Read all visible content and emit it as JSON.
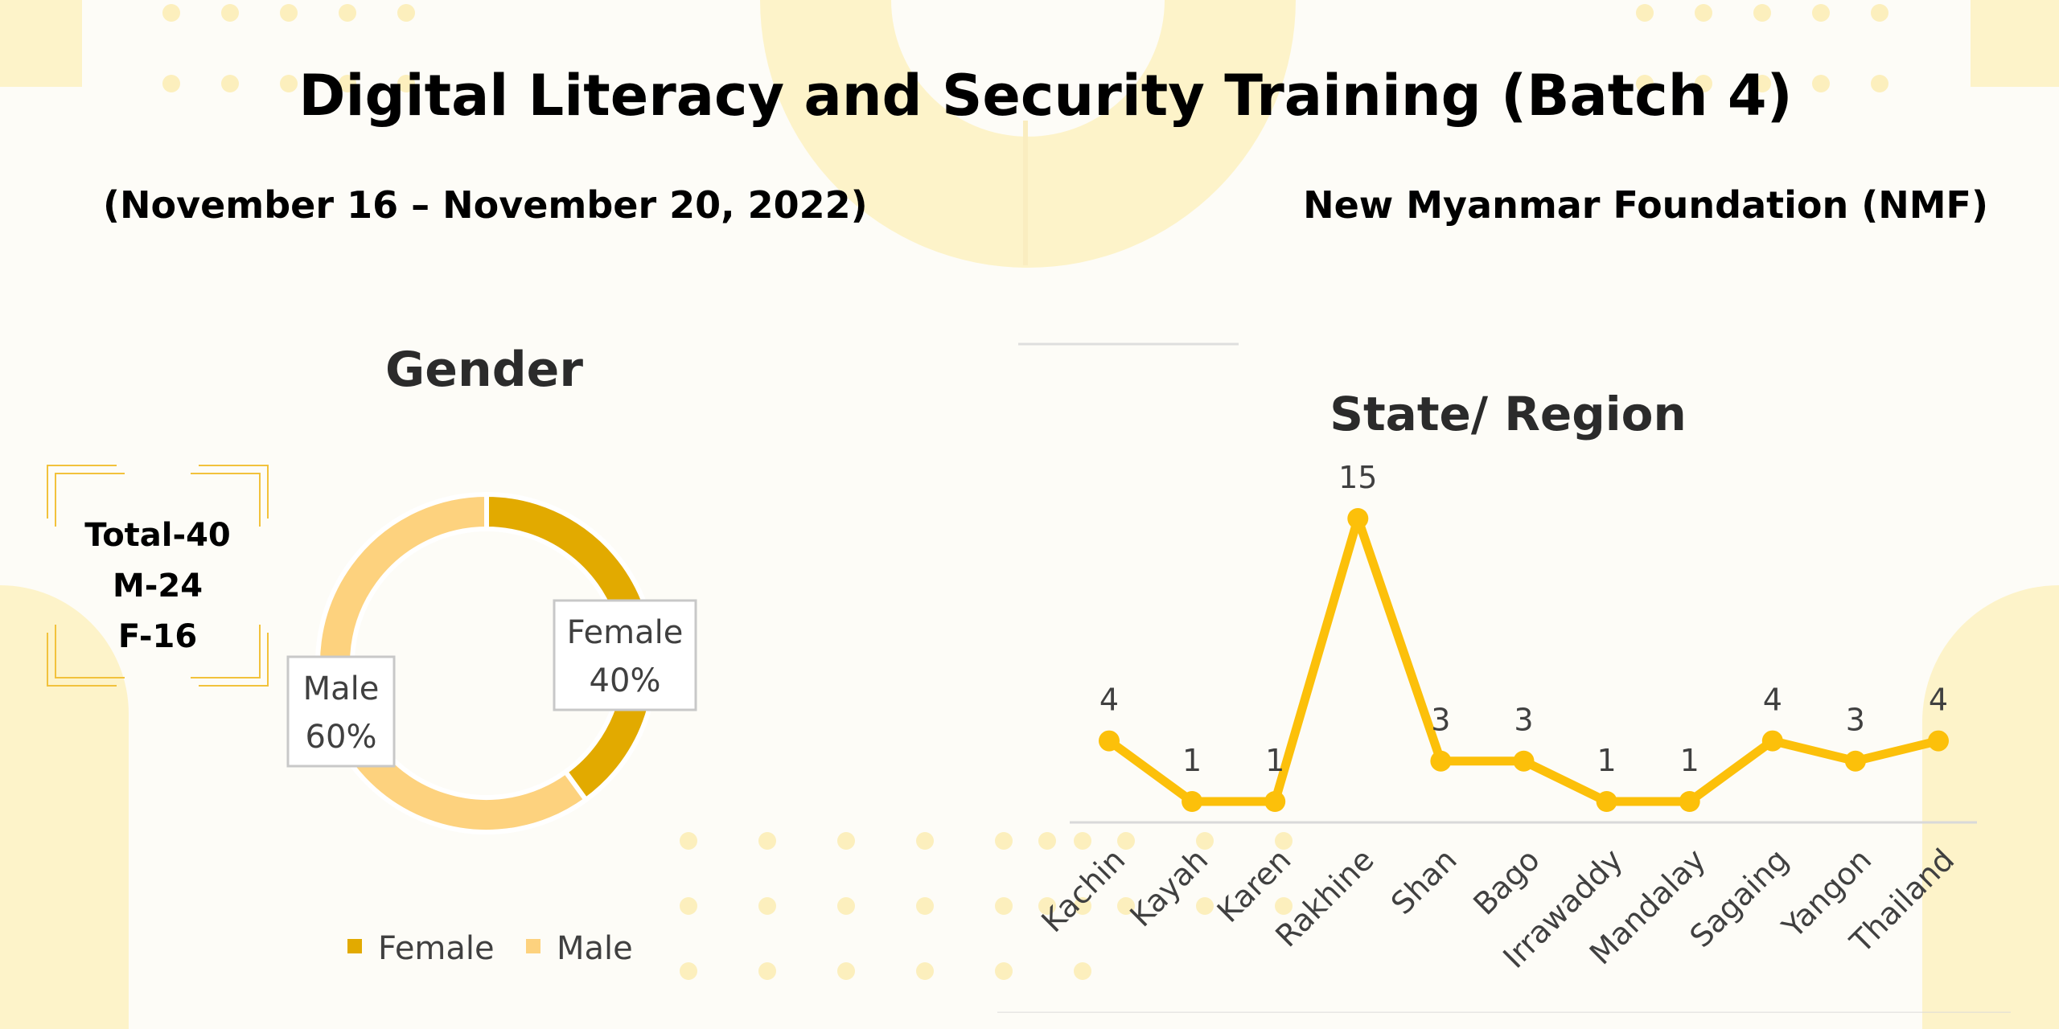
{
  "header": {
    "title": "Digital Literacy and Security Training (Batch 4)",
    "dates": "(November 16 – November 20, 2022)",
    "organization": "New Myanmar Foundation (NMF)"
  },
  "summary": {
    "total": "Total-40",
    "male": "M-24",
    "female": "F-16"
  },
  "colors": {
    "female": "#e2aa00",
    "male": "#fdd27e",
    "line": "#fcc00a",
    "background": "#fdfcf7",
    "decoration": "#fdf3c9"
  },
  "chart_data": [
    {
      "type": "pie",
      "title": "Gender",
      "categories": [
        "Female",
        "Male"
      ],
      "values": [
        40,
        60
      ],
      "data_labels": [
        "Female\n40%",
        "Male\n60%"
      ],
      "legend_position": "bottom",
      "colors": [
        "#e2aa00",
        "#fdd27e"
      ]
    },
    {
      "type": "line",
      "title": "State/ Region",
      "categories": [
        "Kachin",
        "Kayah",
        "Karen",
        "Rakhine",
        "Shan",
        "Bago",
        "Irrawaddy",
        "Mandalay",
        "Sagaing",
        "Yangon",
        "Thailand"
      ],
      "values": [
        4,
        1,
        1,
        15,
        3,
        3,
        1,
        1,
        4,
        3,
        4
      ],
      "ylim": [
        0,
        15
      ],
      "grid": false,
      "legend_position": "none",
      "color": "#fcc00a"
    }
  ]
}
